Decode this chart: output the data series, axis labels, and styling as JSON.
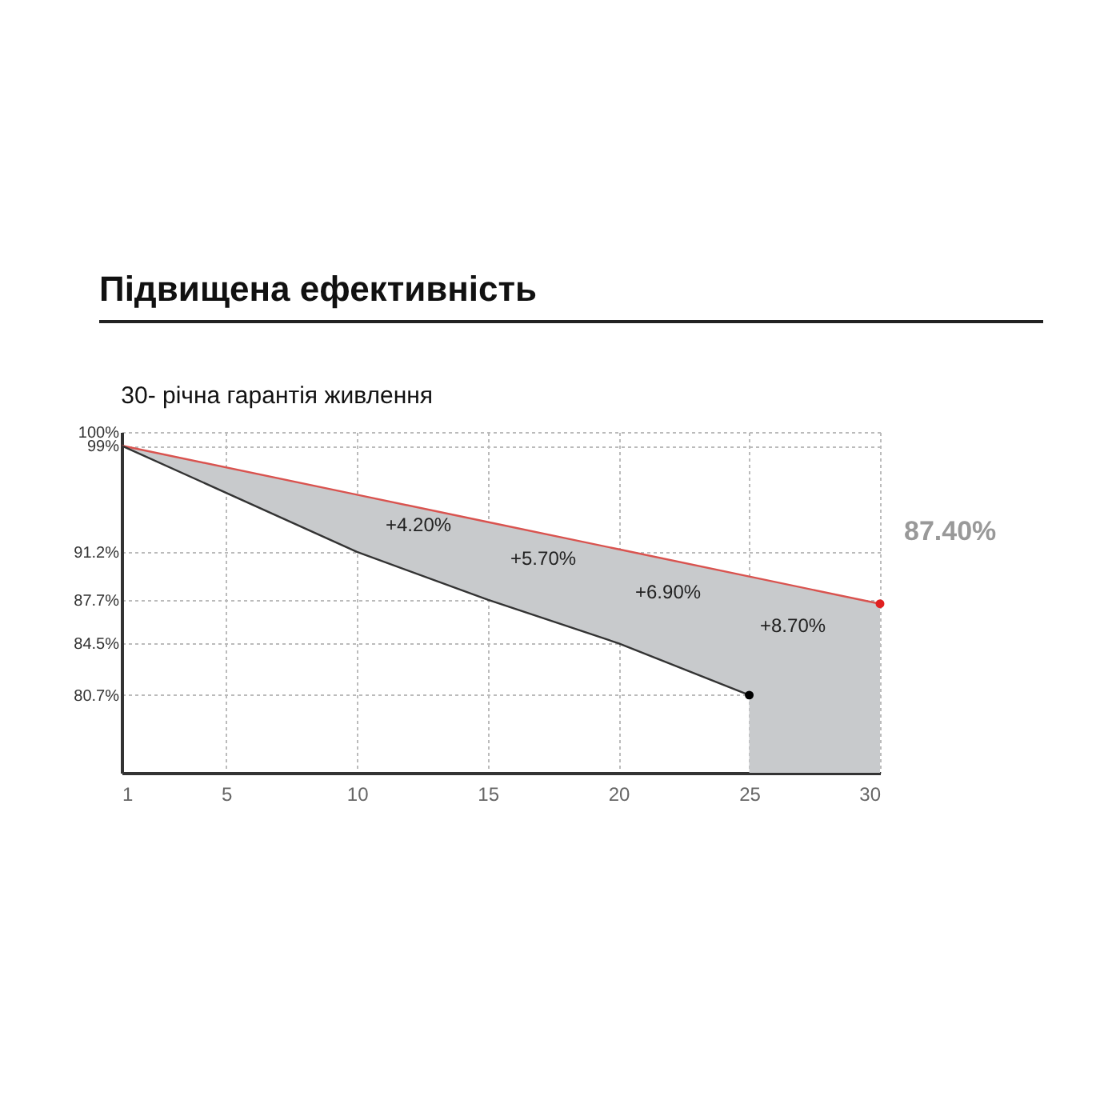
{
  "chart_data": {
    "type": "line",
    "title": "Підвищена ефективність",
    "subtitle": "30- річна гарантія живлення",
    "x": [
      1,
      10,
      15,
      20,
      25
    ],
    "series": [
      {
        "type": "line",
        "color": "#d9534f",
        "x": [
          1,
          10,
          15,
          20,
          25,
          25,
          30
        ],
        "values": [
          99,
          95.4,
          93.4,
          91.4,
          89.4,
          89.4,
          87.4
        ],
        "lower": [
          99,
          91.2,
          87.7,
          84.5,
          80.7,
          75,
          75
        ],
        "upper": [
          99,
          95.4,
          93.4,
          91.4,
          89.4,
          89.4,
          87.4
        ]
      },
      {
        "color": "#333333",
        "values": [
          99,
          91.2,
          87.7,
          84.5,
          80.7
        ]
      },
      {
        "type": "scatter",
        "color": "#000000",
        "x": [
          25
        ],
        "values": [
          80.7
        ]
      },
      {
        "type": "scatter",
        "color": "#e02020",
        "x": [
          30
        ],
        "values": [
          87.4
        ]
      }
    ],
    "xlim": [
      1,
      30
    ],
    "xticks": [
      1,
      5,
      10,
      15,
      20,
      25,
      30
    ],
    "ylim": [
      75,
      100
    ],
    "yticks": [
      {
        "value": 100,
        "label": "100%"
      },
      {
        "value": 99,
        "label": "99%"
      },
      {
        "value": 91.2,
        "label": "91.2%"
      },
      {
        "value": 87.7,
        "label": "87.7%"
      },
      {
        "value": 84.5,
        "label": "84.5%"
      },
      {
        "value": 80.7,
        "label": "80.7%"
      }
    ],
    "annotations": [
      "+4.20%",
      "+5.70%",
      "+6.90%",
      "+8.70%",
      {
        "text": "87.40%",
        "x": 30,
        "y": 87.4
      }
    ],
    "grid": true,
    "line_style": "solid"
  }
}
